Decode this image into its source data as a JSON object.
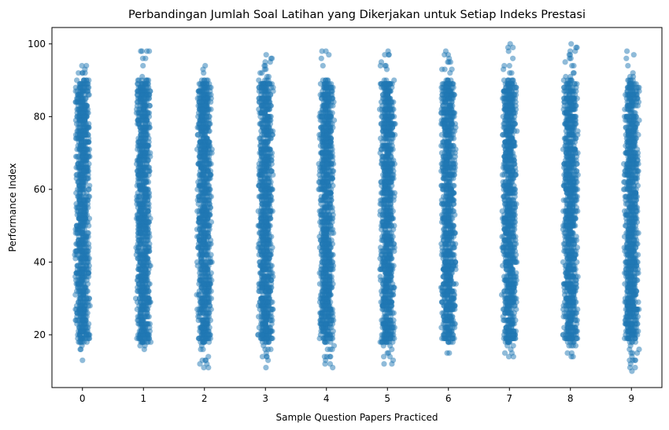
{
  "chart_data": {
    "type": "scatter",
    "subtype": "strip",
    "title": "Perbandingan Jumlah Soal Latihan yang Dikerjakan untuk Setiap Indeks Prestasi",
    "xlabel": "Sample Question Papers Practiced",
    "ylabel": "Performance Index",
    "categories": [
      "0",
      "1",
      "2",
      "3",
      "4",
      "5",
      "6",
      "7",
      "8",
      "9"
    ],
    "yticks": [
      20,
      40,
      60,
      80,
      100
    ],
    "ylim": [
      5.5,
      104.5
    ],
    "point_color": "#1f77b4",
    "point_opacity": 0.5,
    "grid": false,
    "legend": "none",
    "ranges": [
      {
        "x": "0",
        "min": 13,
        "max": 97
      },
      {
        "x": "1",
        "min": 13,
        "max": 99
      },
      {
        "x": "2",
        "min": 11,
        "max": 94
      },
      {
        "x": "3",
        "min": 11,
        "max": 97
      },
      {
        "x": "4",
        "min": 11,
        "max": 99
      },
      {
        "x": "5",
        "min": 11,
        "max": 100
      },
      {
        "x": "6",
        "min": 12,
        "max": 98
      },
      {
        "x": "7",
        "min": 14,
        "max": 100
      },
      {
        "x": "8",
        "min": 12,
        "max": 100
      },
      {
        "x": "9",
        "min": 10,
        "max": 99
      }
    ]
  }
}
